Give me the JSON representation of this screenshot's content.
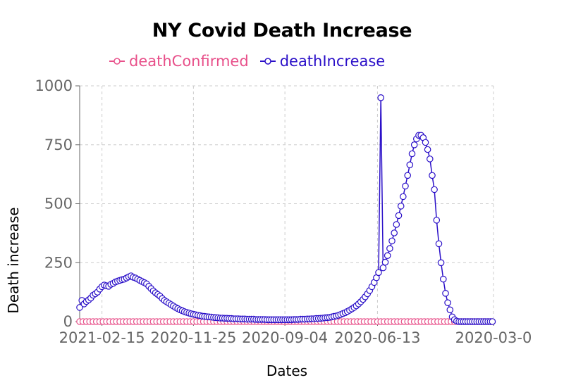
{
  "chart_data": {
    "type": "line",
    "title": "NY Covid Death Increase",
    "xlabel": "Dates",
    "ylabel": "Death increase",
    "ylim": [
      0,
      1000
    ],
    "yticks": [
      0,
      250,
      500,
      750,
      1000
    ],
    "xticks": [
      "2021-02-15",
      "2020-11-25",
      "2020-09-04",
      "2020-06-13",
      "2020-03-0"
    ],
    "x_start": "2021-03-07",
    "x_end": "2020-03-01",
    "grid": true,
    "legend_position": "top",
    "series": [
      {
        "name": "deathConfirmed",
        "color": "#e8508a",
        "step_days": 3,
        "values": [
          0
        ]
      },
      {
        "name": "deathIncrease",
        "color": "#2a0fc8",
        "step_days": 2,
        "values": [
          60,
          90,
          75,
          85,
          92,
          100,
          112,
          118,
          125,
          138,
          148,
          155,
          152,
          150,
          158,
          162,
          168,
          172,
          175,
          178,
          180,
          185,
          190,
          194,
          188,
          185,
          180,
          175,
          170,
          165,
          160,
          150,
          140,
          130,
          122,
          115,
          108,
          98,
          90,
          84,
          78,
          72,
          66,
          60,
          55,
          50,
          46,
          42,
          39,
          36,
          33,
          31,
          29,
          27,
          25,
          23,
          22,
          21,
          20,
          19,
          18,
          17,
          16,
          15,
          15,
          14,
          14,
          13,
          13,
          12,
          12,
          12,
          11,
          11,
          11,
          10,
          10,
          10,
          10,
          9,
          9,
          9,
          9,
          9,
          8,
          8,
          8,
          8,
          8,
          8,
          8,
          8,
          8,
          8,
          8,
          8,
          9,
          9,
          9,
          10,
          10,
          10,
          11,
          11,
          12,
          12,
          13,
          13,
          14,
          15,
          16,
          17,
          18,
          20,
          22,
          24,
          27,
          30,
          34,
          38,
          43,
          48,
          54,
          60,
          67,
          75,
          84,
          94,
          105,
          118,
          132,
          148,
          166,
          186,
          208,
          950,
          228,
          252,
          280,
          310,
          342,
          376,
          412,
          450,
          490,
          530,
          575,
          620,
          665,
          712,
          750,
          775,
          790,
          790,
          780,
          760,
          730,
          690,
          620,
          560,
          430,
          330,
          250,
          180,
          120,
          80,
          50,
          20,
          8,
          2,
          0,
          0,
          0,
          0,
          0,
          0,
          0
        ]
      }
    ]
  }
}
